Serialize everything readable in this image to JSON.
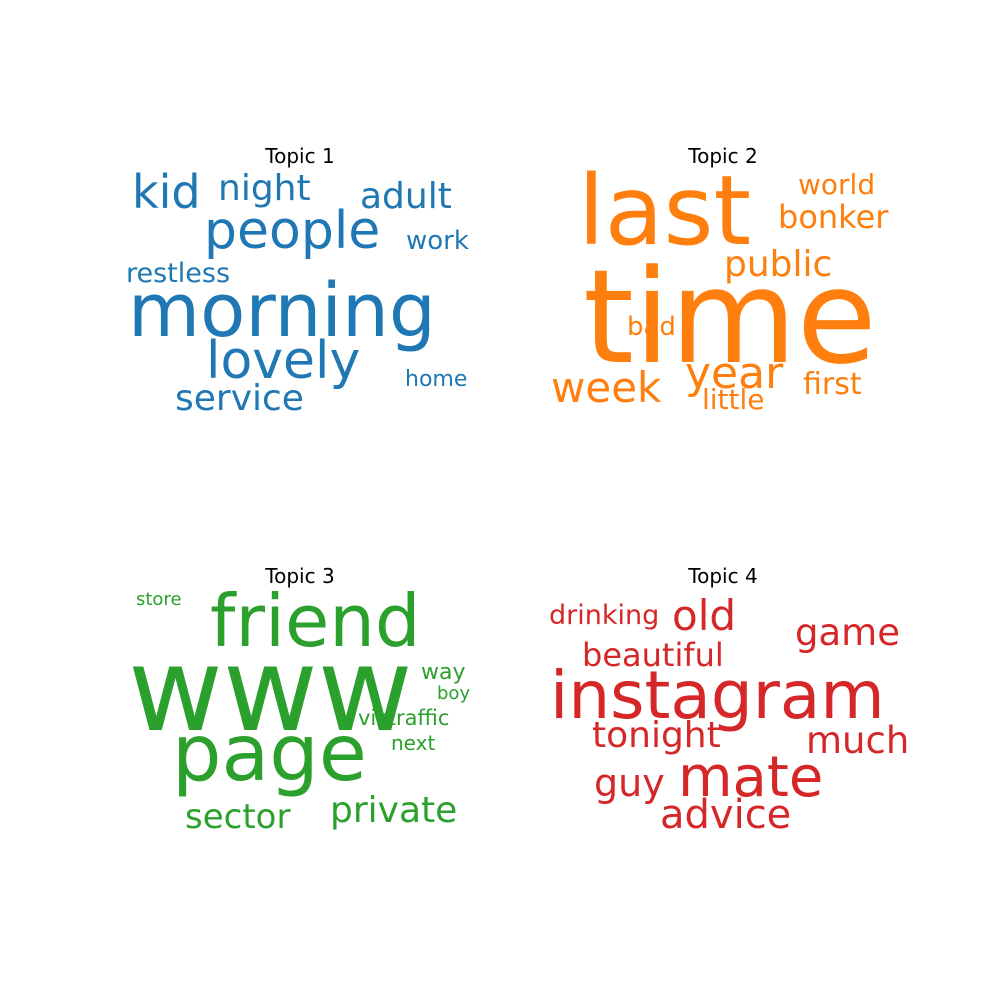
{
  "chart_data": [
    {
      "type": "wordcloud",
      "title": "Topic 1",
      "color": "#1f77b4",
      "words": [
        "morning",
        "people",
        "lovely",
        "kid",
        "night",
        "adult",
        "service",
        "work",
        "restless",
        "home"
      ]
    },
    {
      "type": "wordcloud",
      "title": "Topic 2",
      "color": "#ff7f0e",
      "words": [
        "time",
        "last",
        "year",
        "week",
        "public",
        "bonker",
        "world",
        "first",
        "bad",
        "little"
      ]
    },
    {
      "type": "wordcloud",
      "title": "Topic 3",
      "color": "#2ca02c",
      "words": [
        "www",
        "page",
        "friend",
        "private",
        "sector",
        "victraffic",
        "next",
        "way",
        "boy",
        "store"
      ]
    },
    {
      "type": "wordcloud",
      "title": "Topic 4",
      "color": "#d62728",
      "words": [
        "instagram",
        "mate",
        "advice",
        "old",
        "game",
        "much",
        "beautiful",
        "tonight",
        "guy",
        "drinking"
      ]
    }
  ]
}
